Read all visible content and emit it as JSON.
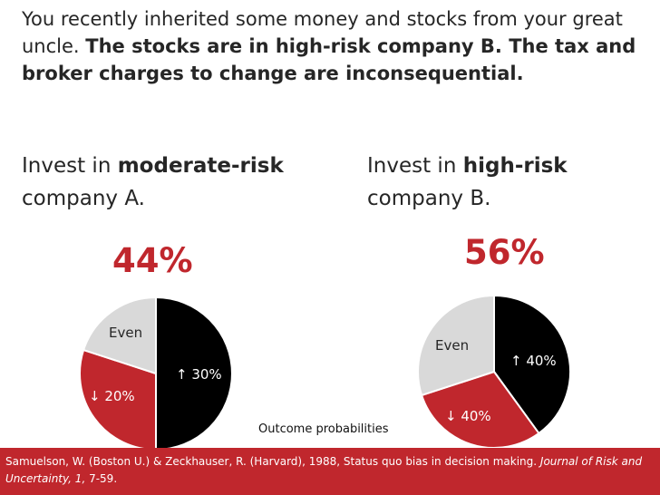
{
  "intro": {
    "part1": "You recently inherited some money and stocks from your great uncle. ",
    "part2": "The stocks are in high-risk company B. The tax and broker charges to change are inconsequential."
  },
  "options": {
    "a": {
      "prefix": "Invest in ",
      "bold": "moderate-risk",
      "suffix": " company A."
    },
    "b": {
      "prefix": "Invest in ",
      "bold": "high-risk",
      "suffix": " company B."
    }
  },
  "chart_data": {
    "type": "pie",
    "charts": [
      {
        "percentage_label": "44%",
        "slices": [
          {
            "label": "↑ 30%",
            "value": 50,
            "color": "#000000"
          },
          {
            "label": "↓ 20%",
            "value": 30,
            "color": "#c0272d"
          },
          {
            "label": "Even",
            "value": 20,
            "color": "#d9d9d9"
          }
        ]
      },
      {
        "percentage_label": "56%",
        "slices": [
          {
            "label": "↑ 40%",
            "value": 40,
            "color": "#000000"
          },
          {
            "label": "↓ 40%",
            "value": 30,
            "color": "#c0272d"
          },
          {
            "label": "Even",
            "value": 30,
            "color": "#d9d9d9"
          }
        ]
      }
    ],
    "annotation": "Outcome probabilities"
  },
  "citation": {
    "text1": "Samuelson, W. (Boston U.) & Zeckhauser, R. (Harvard), 1988, Status quo bias in decision making. ",
    "journal": "Journal of Risk and Uncertainty, 1,",
    "text2": " 7-59."
  },
  "colors": {
    "accent": "#c0272d",
    "up": "#000000",
    "down": "#c0272d",
    "even": "#d9d9d9"
  }
}
